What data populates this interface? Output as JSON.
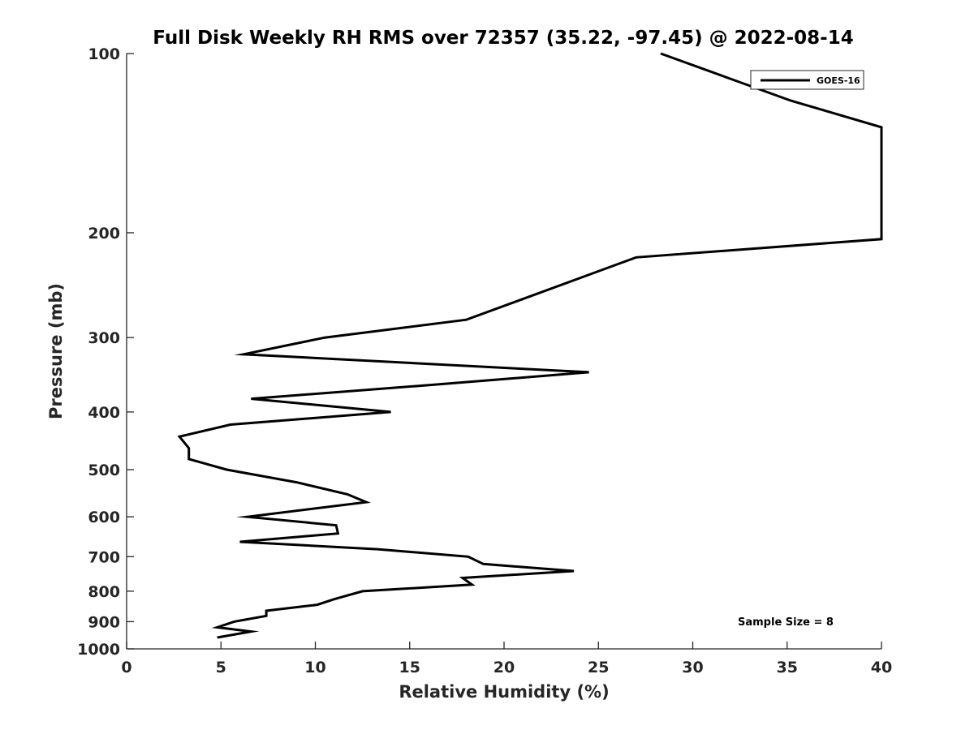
{
  "chart_data": {
    "type": "line",
    "title": "Full Disk Weekly RH RMS over 72357 (35.22, -97.45) @ 2022-08-14",
    "xlabel": "Relative Humidity (%)",
    "ylabel": "Pressure (mb)",
    "xlim": [
      0,
      40
    ],
    "ylim": [
      100,
      1000
    ],
    "y_scale": "log",
    "y_reversed": true,
    "grid": false,
    "legend_position": "top-right",
    "x_ticks": [
      "0",
      "5",
      "10",
      "15",
      "20",
      "25",
      "30",
      "35",
      "40"
    ],
    "y_ticks": [
      "100",
      "200",
      "300",
      "400",
      "500",
      "600",
      "700",
      "800",
      "900",
      "1000"
    ],
    "annotation": "Sample Size = 8",
    "series": [
      {
        "name": "GOES-16",
        "color": "#000000",
        "points": [
          {
            "x": 28.3,
            "y": 100
          },
          {
            "x": 35.2,
            "y": 120
          },
          {
            "x": 40.0,
            "y": 133
          },
          {
            "x": 40.0,
            "y": 205
          },
          {
            "x": 27.0,
            "y": 220
          },
          {
            "x": 18.0,
            "y": 280
          },
          {
            "x": 10.5,
            "y": 300
          },
          {
            "x": 6.2,
            "y": 320
          },
          {
            "x": 24.5,
            "y": 343
          },
          {
            "x": 16.3,
            "y": 360
          },
          {
            "x": 6.6,
            "y": 380
          },
          {
            "x": 14.0,
            "y": 400
          },
          {
            "x": 5.5,
            "y": 420
          },
          {
            "x": 2.8,
            "y": 440
          },
          {
            "x": 3.3,
            "y": 460
          },
          {
            "x": 3.3,
            "y": 480
          },
          {
            "x": 5.3,
            "y": 500
          },
          {
            "x": 9.0,
            "y": 525
          },
          {
            "x": 11.7,
            "y": 550
          },
          {
            "x": 12.7,
            "y": 567
          },
          {
            "x": 6.4,
            "y": 600
          },
          {
            "x": 11.1,
            "y": 620
          },
          {
            "x": 11.2,
            "y": 640
          },
          {
            "x": 6.0,
            "y": 661
          },
          {
            "x": 13.3,
            "y": 680
          },
          {
            "x": 18.1,
            "y": 700
          },
          {
            "x": 18.9,
            "y": 720
          },
          {
            "x": 23.7,
            "y": 740
          },
          {
            "x": 17.8,
            "y": 760
          },
          {
            "x": 18.3,
            "y": 780
          },
          {
            "x": 12.5,
            "y": 800
          },
          {
            "x": 11.0,
            "y": 825
          },
          {
            "x": 10.1,
            "y": 843
          },
          {
            "x": 7.4,
            "y": 863
          },
          {
            "x": 7.4,
            "y": 880
          },
          {
            "x": 5.7,
            "y": 900
          },
          {
            "x": 4.8,
            "y": 920
          },
          {
            "x": 6.6,
            "y": 935
          },
          {
            "x": 4.8,
            "y": 957
          }
        ]
      }
    ]
  }
}
